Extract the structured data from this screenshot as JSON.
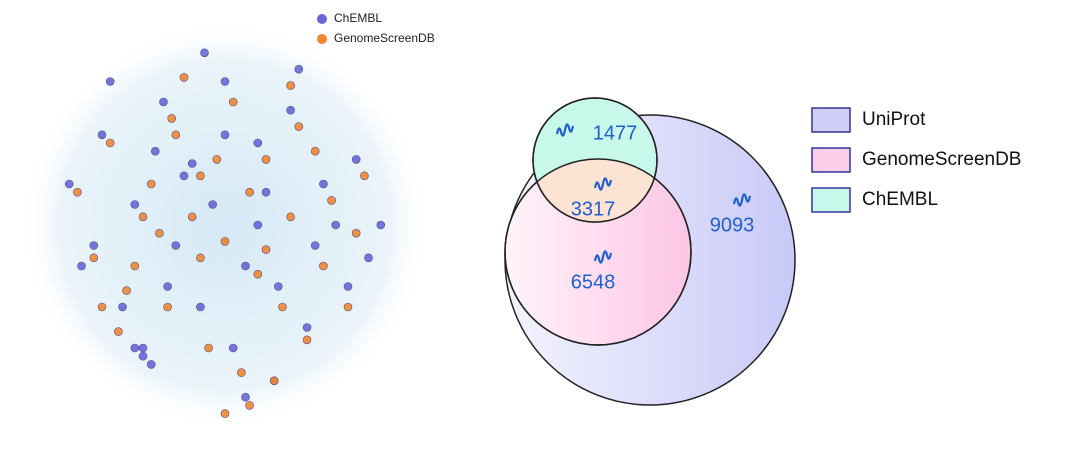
{
  "chart_data": [
    {
      "type": "scatter",
      "xlim": [
        0,
        100
      ],
      "ylim": [
        0,
        100
      ],
      "series": [
        {
          "name": "ChEMBL",
          "color": "#6468d8",
          "x": [
            12,
            20,
            28,
            35,
            42,
            50,
            58,
            66,
            74,
            82,
            88,
            15,
            25,
            38,
            47,
            55,
            63,
            72,
            80,
            30,
            40,
            60,
            70,
            50,
            45,
            22,
            33,
            77,
            85,
            52,
            30,
            32,
            28,
            62,
            55,
            18,
            68,
            44,
            36,
            58
          ],
          "values": [
            60,
            72,
            55,
            80,
            65,
            85,
            70,
            78,
            60,
            66,
            50,
            40,
            30,
            45,
            55,
            40,
            35,
            45,
            35,
            20,
            62,
            58,
            25,
            72,
            92,
            85,
            68,
            50,
            42,
            20,
            18,
            16,
            20,
            12,
            8,
            45,
            88,
            30,
            35,
            50
          ]
        },
        {
          "name": "GenomeScreenDB",
          "color": "#f0852d",
          "x": [
            14,
            22,
            30,
            37,
            44,
            52,
            60,
            68,
            76,
            84,
            18,
            26,
            34,
            42,
            50,
            58,
            66,
            74,
            82,
            24,
            36,
            48,
            56,
            64,
            72,
            40,
            46,
            54,
            62,
            70,
            32,
            56,
            50,
            28,
            20,
            80,
            66,
            44,
            38,
            60
          ],
          "values": [
            58,
            70,
            52,
            76,
            62,
            80,
            66,
            74,
            56,
            62,
            42,
            34,
            48,
            52,
            46,
            38,
            52,
            40,
            48,
            24,
            30,
            66,
            58,
            30,
            68,
            86,
            20,
            14,
            12,
            22,
            60,
            6,
            4,
            40,
            30,
            30,
            84,
            42,
            72,
            44
          ]
        }
      ]
    },
    {
      "type": "venn",
      "sets": [
        {
          "name": "UniProt",
          "color": "#cfcffa"
        },
        {
          "name": "GenomeScreenDB",
          "color": "#fccfe8"
        },
        {
          "name": "ChEMBL",
          "color": "#c8f8ea"
        }
      ],
      "values": [
        1477,
        3317,
        6548,
        9093
      ]
    }
  ]
}
